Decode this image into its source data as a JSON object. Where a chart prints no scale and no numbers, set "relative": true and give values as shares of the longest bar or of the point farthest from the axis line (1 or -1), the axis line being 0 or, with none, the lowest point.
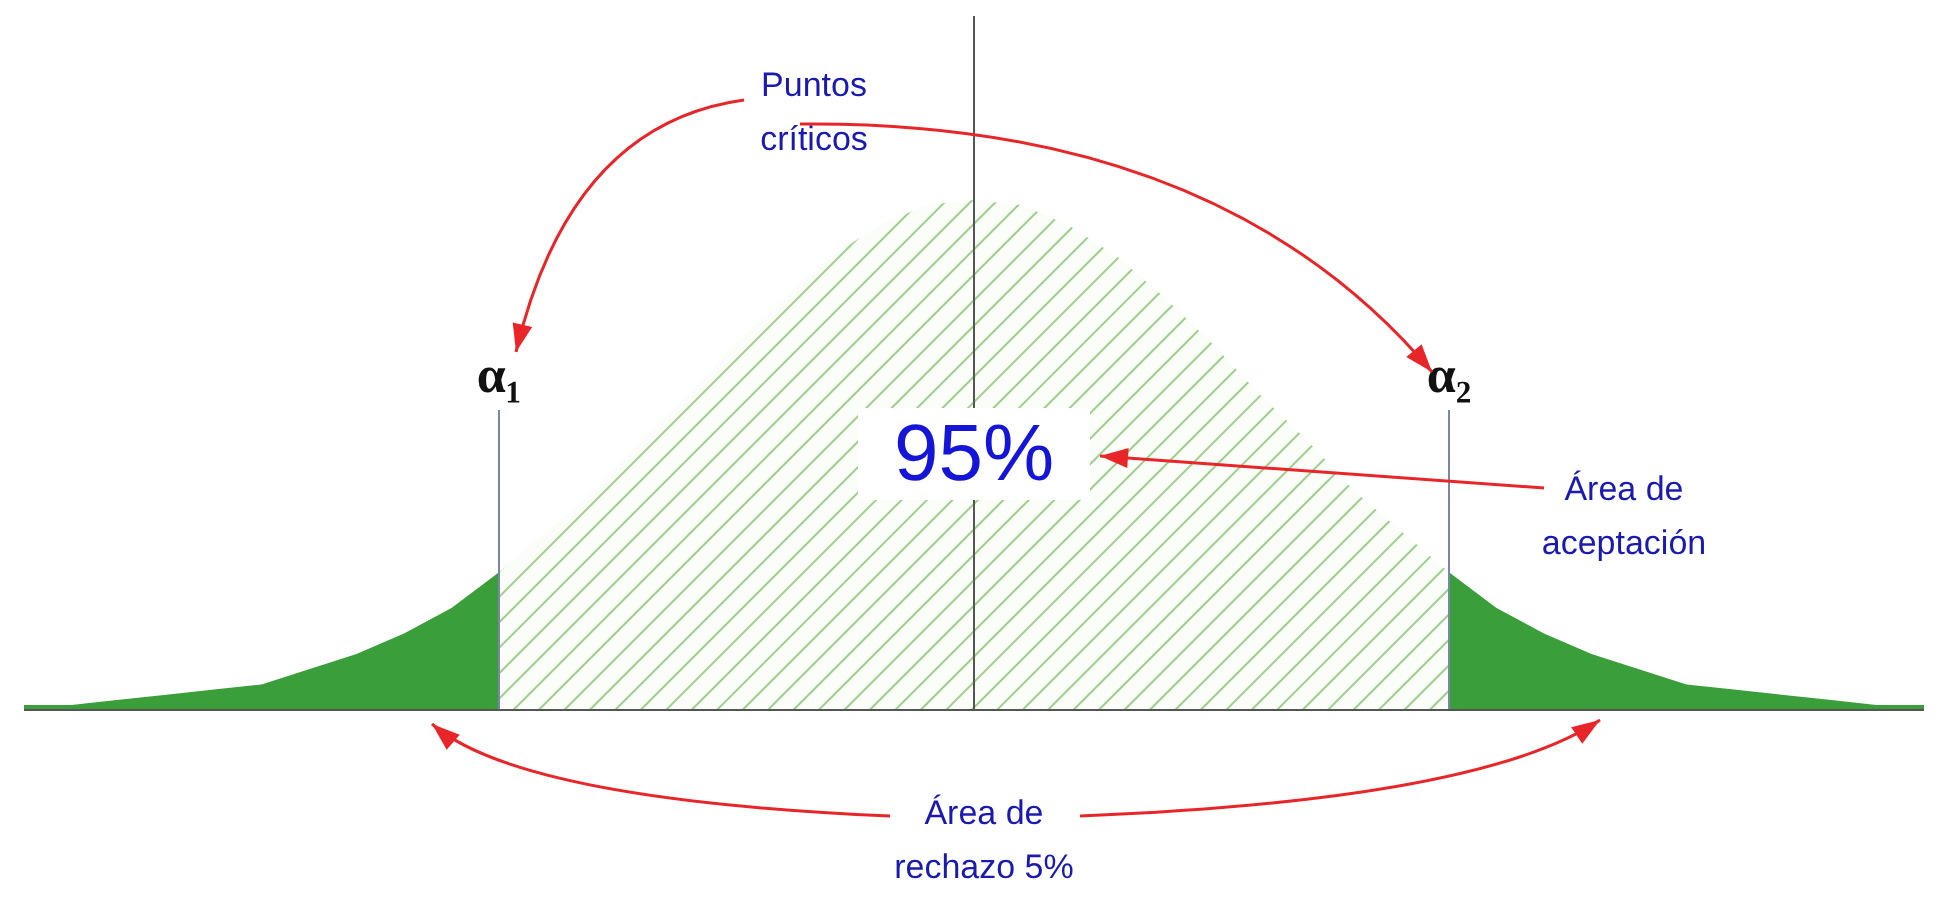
{
  "chart_data": {
    "type": "area",
    "relative": true,
    "categories": [
      null,
      null,
      null,
      null,
      null,
      null,
      null,
      null,
      null,
      null,
      null,
      null,
      null,
      null,
      null,
      null,
      null,
      null,
      null,
      null,
      null,
      null,
      null,
      null,
      null,
      null,
      null,
      null,
      null,
      null,
      null,
      null,
      null,
      null,
      null,
      null,
      null,
      null,
      null,
      null,
      null
    ],
    "series": [
      {
        "color": "#3a9e3a",
        "values": [
          0.01,
          0.01,
          0.02,
          0.03,
          0.04,
          0.05,
          0.08,
          0.11,
          0.15,
          0.2,
          0.27,
          null,
          null,
          null,
          null,
          null,
          null,
          null,
          null,
          null,
          null,
          null,
          null,
          null,
          null,
          null,
          null,
          null,
          null,
          null,
          null,
          null,
          null,
          null,
          null,
          null,
          null,
          null,
          null,
          null,
          null
        ]
      },
      {
        "color": "#9ccf8a",
        "values": [
          null,
          null,
          null,
          null,
          null,
          null,
          null,
          null,
          null,
          null,
          0.27,
          0.35,
          0.43,
          0.53,
          0.62,
          0.72,
          0.81,
          0.89,
          0.95,
          0.99,
          1,
          0.99,
          0.95,
          0.89,
          0.81,
          0.72,
          0.62,
          0.53,
          0.43,
          0.35,
          0.27,
          null,
          null,
          null,
          null,
          null,
          null,
          null,
          null,
          null,
          null
        ]
      },
      {
        "color": "#3a9e3a",
        "values": [
          null,
          null,
          null,
          null,
          null,
          null,
          null,
          null,
          null,
          null,
          null,
          null,
          null,
          null,
          null,
          null,
          null,
          null,
          null,
          null,
          null,
          null,
          null,
          null,
          null,
          null,
          null,
          null,
          null,
          null,
          0.27,
          0.2,
          0.15,
          0.11,
          0.08,
          0.05,
          0.04,
          0.03,
          0.02,
          0.01,
          0.01
        ]
      }
    ],
    "annotations": [
      "Puntos críticos",
      "α₁",
      "α₂",
      "95%",
      "Área de aceptación",
      "Área de rechazo 5%"
    ]
  }
}
